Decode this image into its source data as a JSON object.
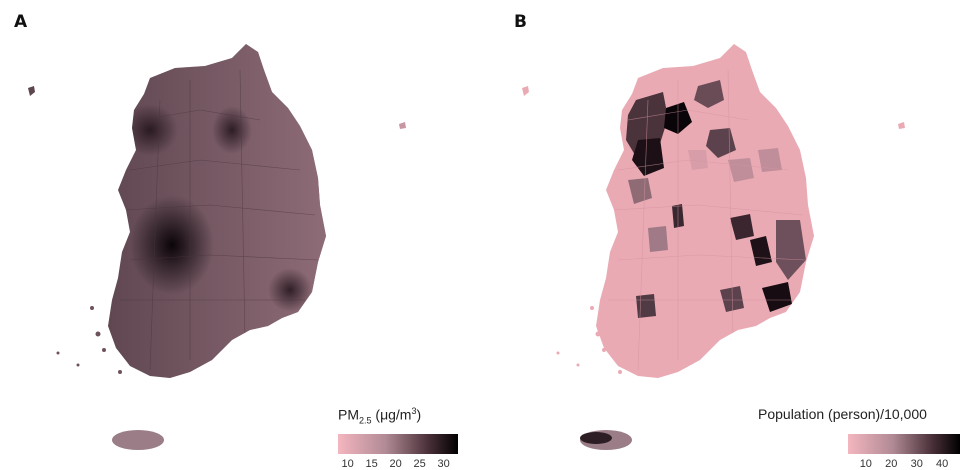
{
  "panels": [
    {
      "letter": "A",
      "legend": {
        "title_main": "PM",
        "title_sub": "2.5",
        "title_unit_open": " (μg/m",
        "title_unit_sup": "3",
        "title_unit_close": ")",
        "ticks": [
          10,
          15,
          20,
          25,
          30
        ],
        "range": [
          8,
          33
        ],
        "low_color": "#f4b6bf",
        "high_color": "#000000"
      },
      "fill_level": 0.72
    },
    {
      "letter": "B",
      "legend": {
        "title": "Population (person)/10,000",
        "ticks": [
          10,
          20,
          30,
          40
        ],
        "range": [
          3,
          47
        ],
        "low_color": "#f4b6bf",
        "high_color": "#000000"
      },
      "fill_level": 0.12
    }
  ]
}
